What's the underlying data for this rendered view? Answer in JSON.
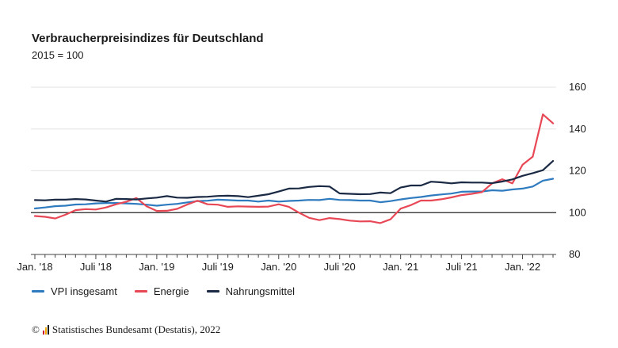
{
  "header": {
    "title": "Verbraucherpreisindizes für Deutschland",
    "subtitle": "2015 = 100"
  },
  "legend": [
    {
      "label": "VPI insgesamt",
      "color": "#2f7bbf"
    },
    {
      "label": "Energie",
      "color": "#e84855"
    },
    {
      "label": "Nahrungsmittel",
      "color": "#1b2a44"
    }
  ],
  "footer": {
    "copyright_symbol": "©",
    "source": "Statistisches Bundesamt (Destatis), 2022",
    "logo_colors": [
      "#c8102e",
      "#f2a900",
      "#1a1a1a"
    ]
  },
  "chart_data": {
    "type": "line",
    "ylim": [
      80,
      160
    ],
    "yticks": [
      80,
      100,
      120,
      140,
      160
    ],
    "reference_line": 100,
    "grid": true,
    "legend_position": "bottom-left",
    "x_tick_labels": [
      {
        "index": 0,
        "label": "Jan. '18"
      },
      {
        "index": 6,
        "label": "Juli '18"
      },
      {
        "index": 12,
        "label": "Jan. '19"
      },
      {
        "index": 18,
        "label": "Juli '19"
      },
      {
        "index": 24,
        "label": "Jan. '20"
      },
      {
        "index": 30,
        "label": "Juli '20"
      },
      {
        "index": 36,
        "label": "Jan. '21"
      },
      {
        "index": 42,
        "label": "Juli '21"
      },
      {
        "index": 48,
        "label": "Jan. '22"
      }
    ],
    "x": [
      "2018-01",
      "2018-02",
      "2018-03",
      "2018-04",
      "2018-05",
      "2018-06",
      "2018-07",
      "2018-08",
      "2018-09",
      "2018-10",
      "2018-11",
      "2018-12",
      "2019-01",
      "2019-02",
      "2019-03",
      "2019-04",
      "2019-05",
      "2019-06",
      "2019-07",
      "2019-08",
      "2019-09",
      "2019-10",
      "2019-11",
      "2019-12",
      "2020-01",
      "2020-02",
      "2020-03",
      "2020-04",
      "2020-05",
      "2020-06",
      "2020-07",
      "2020-08",
      "2020-09",
      "2020-10",
      "2020-11",
      "2020-12",
      "2021-01",
      "2021-02",
      "2021-03",
      "2021-04",
      "2021-05",
      "2021-06",
      "2021-07",
      "2021-08",
      "2021-09",
      "2021-10",
      "2021-11",
      "2021-12",
      "2022-01",
      "2022-02",
      "2022-03",
      "2022-04"
    ],
    "series": [
      {
        "name": "VPI insgesamt",
        "color": "#2f7bbf",
        "values": [
          102.0,
          102.5,
          103.1,
          103.3,
          103.9,
          104.0,
          104.4,
          104.6,
          104.6,
          104.4,
          104.2,
          103.8,
          103.3,
          103.8,
          104.2,
          104.9,
          105.5,
          105.7,
          106.2,
          106.0,
          105.8,
          105.8,
          105.3,
          105.8,
          105.3,
          105.6,
          105.8,
          106.1,
          106.0,
          106.6,
          106.1,
          106.0,
          105.8,
          105.8,
          105.0,
          105.5,
          106.3,
          107.0,
          107.5,
          108.2,
          108.7,
          109.1,
          110.0,
          110.1,
          110.1,
          110.7,
          110.5,
          111.1,
          111.5,
          112.5,
          115.3,
          116.2
        ]
      },
      {
        "name": "Energie",
        "color": "#e84855",
        "values": [
          98.4,
          98.0,
          97.2,
          99.0,
          101.2,
          101.7,
          101.5,
          102.5,
          104.0,
          105.2,
          107.0,
          103.0,
          100.8,
          100.9,
          101.8,
          103.9,
          105.7,
          104.0,
          103.8,
          102.8,
          103.0,
          102.9,
          102.8,
          102.9,
          104.0,
          102.8,
          100.0,
          97.5,
          96.4,
          97.4,
          96.9,
          96.2,
          95.8,
          95.9,
          95.0,
          96.8,
          101.9,
          103.6,
          105.8,
          105.8,
          106.4,
          107.3,
          108.4,
          109.0,
          109.8,
          114.0,
          116.0,
          114.0,
          122.9,
          126.8,
          147.0,
          142.7
        ]
      },
      {
        "name": "Nahrungsmittel",
        "color": "#1b2a44",
        "values": [
          106.0,
          105.9,
          106.2,
          106.2,
          106.5,
          106.3,
          105.8,
          105.3,
          106.6,
          106.5,
          106.3,
          106.8,
          107.2,
          107.9,
          107.2,
          107.1,
          107.5,
          107.6,
          108.0,
          108.1,
          107.9,
          107.4,
          108.1,
          108.8,
          110.1,
          111.5,
          111.6,
          112.3,
          112.7,
          112.5,
          109.2,
          109.0,
          108.8,
          108.9,
          109.6,
          109.3,
          112.0,
          113.0,
          113.0,
          114.8,
          114.5,
          114.0,
          114.5,
          114.4,
          114.4,
          114.1,
          114.9,
          115.9,
          117.6,
          118.9,
          120.3,
          124.7
        ]
      }
    ]
  }
}
